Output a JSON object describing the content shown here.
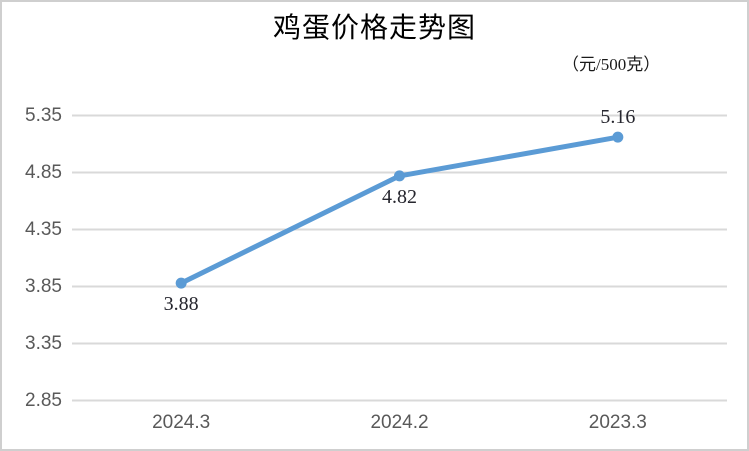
{
  "window": {
    "background_color": "#ffffff",
    "frame_border_color": "#cfcfcf"
  },
  "chart_data": {
    "type": "line",
    "title": "鸡蛋价格走势图",
    "unit_label": "（元/500克）",
    "categories": [
      "2024.3",
      "2024.2",
      "2023.3"
    ],
    "values": [
      3.88,
      4.82,
      5.16
    ],
    "data_labels": [
      "3.88",
      "4.82",
      "5.16"
    ],
    "data_label_positions": [
      "below",
      "below",
      "above"
    ],
    "ylim": [
      2.85,
      5.35
    ],
    "yticks": [
      "5.35",
      "4.85",
      "4.35",
      "3.85",
      "3.35",
      "2.85"
    ],
    "grid": "horizontal-only",
    "legend": "none",
    "xlabel": "",
    "ylabel": "",
    "colors": {
      "line": "#5B9BD5",
      "marker": "#5B9BD5",
      "gridline": "#D9D9D9",
      "tick_text": "#595959",
      "data_label_text": "#26262e",
      "title_text": "#000000"
    }
  }
}
